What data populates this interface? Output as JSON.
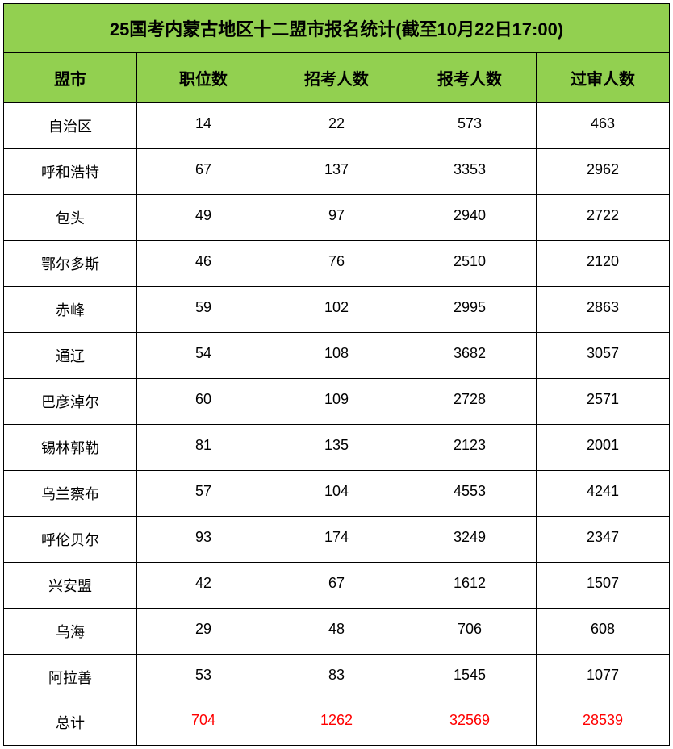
{
  "table": {
    "title": "25国考内蒙古地区十二盟市报名统计(截至10月22日17:00)",
    "columns": [
      "盟市",
      "职位数",
      "招考人数",
      "报考人数",
      "过审人数"
    ],
    "rows": [
      [
        "自治区",
        "14",
        "22",
        "573",
        "463"
      ],
      [
        "呼和浩特",
        "67",
        "137",
        "3353",
        "2962"
      ],
      [
        "包头",
        "49",
        "97",
        "2940",
        "2722"
      ],
      [
        "鄂尔多斯",
        "46",
        "76",
        "2510",
        "2120"
      ],
      [
        "赤峰",
        "59",
        "102",
        "2995",
        "2863"
      ],
      [
        "通辽",
        "54",
        "108",
        "3682",
        "3057"
      ],
      [
        "巴彦淖尔",
        "60",
        "109",
        "2728",
        "2571"
      ],
      [
        "锡林郭勒",
        "81",
        "135",
        "2123",
        "2001"
      ],
      [
        "乌兰察布",
        "57",
        "104",
        "4553",
        "4241"
      ],
      [
        "呼伦贝尔",
        "93",
        "174",
        "3249",
        "2347"
      ],
      [
        "兴安盟",
        "42",
        "67",
        "1612",
        "1507"
      ],
      [
        "乌海",
        "29",
        "48",
        "706",
        "608"
      ],
      [
        "阿拉善",
        "53",
        "83",
        "1545",
        "1077"
      ]
    ],
    "total_row": [
      "总计",
      "704",
      "1262",
      "32569",
      "28539"
    ],
    "colors": {
      "header_bg": "#92d050",
      "border": "#000000",
      "text": "#000000",
      "total_value": "#ff0000",
      "row_bg": "#ffffff"
    },
    "font": {
      "title_size": 22,
      "header_size": 20,
      "cell_size": 18
    }
  }
}
